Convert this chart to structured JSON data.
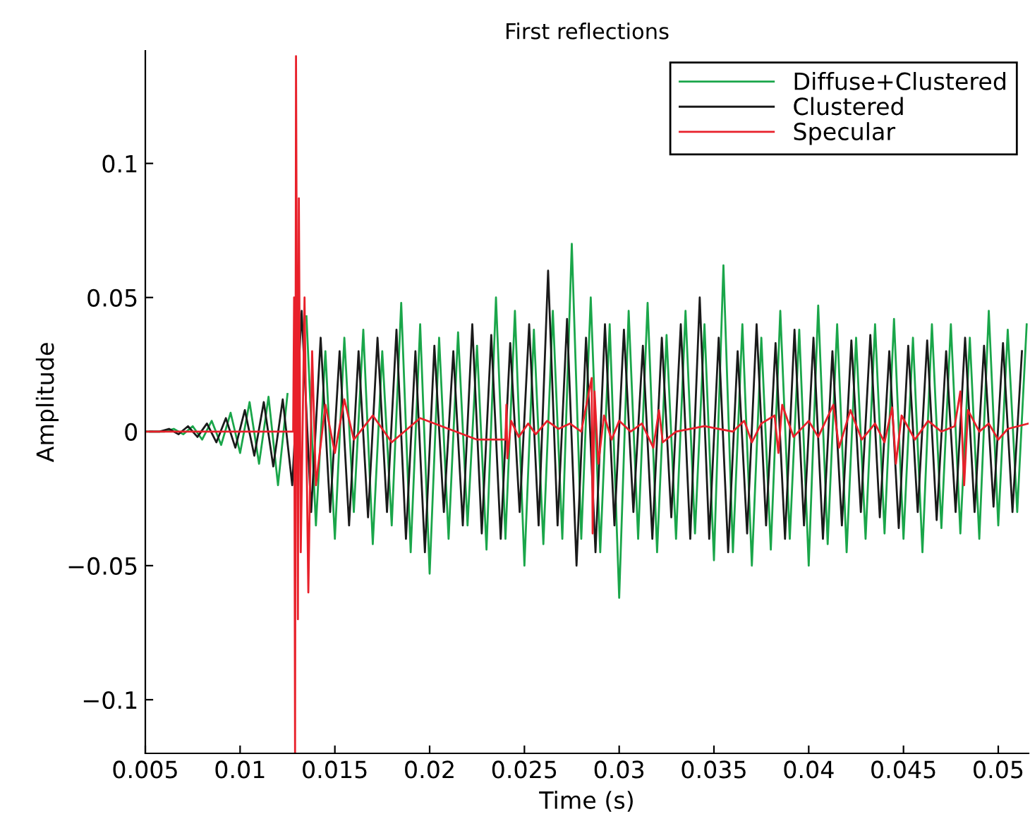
{
  "chart_data": {
    "type": "line",
    "title": "First reflections",
    "xlabel": "Time (s)",
    "ylabel": "Amplitude",
    "xlim": [
      0.005,
      0.0516
    ],
    "xticks": [
      0.005,
      0.01,
      0.015,
      0.02,
      0.025,
      0.03,
      0.035,
      0.04,
      0.045,
      0.05
    ],
    "ylim": [
      -0.12,
      0.142
    ],
    "yticks": [
      {
        "value": -0.1,
        "label": "−0.1"
      },
      {
        "value": -0.05,
        "label": "−0.05"
      },
      0,
      0.05,
      0.1
    ],
    "grid": false,
    "legend": "top right",
    "marker": "none",
    "line_style": "solid",
    "series": [
      {
        "name": "Diffuse+Clustered",
        "color": "#1aa64a",
        "x": [
          0.005,
          0.0055,
          0.006,
          0.0065,
          0.007,
          0.0075,
          0.008,
          0.0085,
          0.009,
          0.0095,
          0.01,
          0.0105,
          0.011,
          0.0115,
          0.012,
          0.0125,
          0.013,
          0.0135,
          0.014,
          0.0145,
          0.015,
          0.0155,
          0.016,
          0.0165,
          0.017,
          0.0175,
          0.018,
          0.0185,
          0.019,
          0.0195,
          0.02,
          0.0205,
          0.021,
          0.0215,
          0.022,
          0.0225,
          0.023,
          0.0235,
          0.024,
          0.0245,
          0.025,
          0.0255,
          0.026,
          0.0265,
          0.027,
          0.0275,
          0.028,
          0.0285,
          0.029,
          0.0295,
          0.03,
          0.0305,
          0.031,
          0.0315,
          0.032,
          0.0325,
          0.033,
          0.0335,
          0.034,
          0.0345,
          0.035,
          0.0355,
          0.036,
          0.0365,
          0.037,
          0.0375,
          0.038,
          0.0385,
          0.039,
          0.0395,
          0.04,
          0.0405,
          0.041,
          0.0415,
          0.042,
          0.0425,
          0.043,
          0.0435,
          0.044,
          0.0445,
          0.045,
          0.0455,
          0.046,
          0.0465,
          0.047,
          0.0475,
          0.048,
          0.0485,
          0.049,
          0.0495,
          0.05,
          0.0505,
          0.051,
          0.0515
        ],
        "values": [
          0,
          0,
          0,
          0.001,
          -0.001,
          0.002,
          -0.003,
          0.004,
          -0.005,
          0.007,
          -0.008,
          0.011,
          -0.012,
          0.013,
          -0.02,
          0.014,
          null,
          0.043,
          -0.035,
          0.03,
          -0.04,
          0.035,
          -0.03,
          0.038,
          -0.042,
          0.03,
          -0.035,
          0.048,
          -0.045,
          0.04,
          -0.053,
          0.035,
          -0.04,
          0.037,
          -0.035,
          0.032,
          -0.044,
          0.05,
          -0.04,
          0.045,
          -0.05,
          0.038,
          -0.042,
          0.045,
          -0.04,
          0.07,
          -0.04,
          0.05,
          -0.045,
          0.04,
          -0.062,
          0.045,
          -0.04,
          0.048,
          -0.045,
          0.036,
          -0.04,
          0.045,
          -0.038,
          0.04,
          -0.048,
          0.062,
          -0.045,
          0.04,
          -0.05,
          0.035,
          -0.044,
          0.045,
          -0.04,
          0.038,
          -0.05,
          0.047,
          -0.042,
          0.04,
          -0.045,
          0.035,
          -0.04,
          0.04,
          -0.038,
          0.042,
          -0.04,
          0.035,
          -0.045,
          0.04,
          -0.036,
          0.04,
          -0.038,
          0.035,
          -0.04,
          0.045,
          -0.035,
          0.038,
          -0.03,
          0.04
        ]
      },
      {
        "name": "Clustered",
        "color": "#1a1a1a",
        "x": [
          0.00525,
          0.00575,
          0.00625,
          0.00675,
          0.00725,
          0.00775,
          0.00825,
          0.00875,
          0.00925,
          0.00975,
          0.01025,
          0.01075,
          0.01125,
          0.01175,
          0.01225,
          0.01275,
          0.01325,
          0.01375,
          0.01425,
          0.01475,
          0.01525,
          0.01575,
          0.01625,
          0.01675,
          0.01725,
          0.01775,
          0.01825,
          0.01875,
          0.01925,
          0.01975,
          0.02025,
          0.02075,
          0.02125,
          0.02175,
          0.02225,
          0.02275,
          0.02325,
          0.02375,
          0.02425,
          0.02475,
          0.02525,
          0.02575,
          0.02625,
          0.02675,
          0.02725,
          0.02775,
          0.02825,
          0.02875,
          0.02925,
          0.02975,
          0.03025,
          0.03075,
          0.03125,
          0.03175,
          0.03225,
          0.03275,
          0.03325,
          0.03375,
          0.03425,
          0.03475,
          0.03525,
          0.03575,
          0.03625,
          0.03675,
          0.03725,
          0.03775,
          0.03825,
          0.03875,
          0.03925,
          0.03975,
          0.04025,
          0.04075,
          0.04125,
          0.04175,
          0.04225,
          0.04275,
          0.04325,
          0.04375,
          0.04425,
          0.04475,
          0.04525,
          0.04575,
          0.04625,
          0.04675,
          0.04725,
          0.04775,
          0.04825,
          0.04875,
          0.04925,
          0.04975,
          0.05025,
          0.05075,
          0.05125
        ],
        "values": [
          0,
          0,
          0.001,
          -0.001,
          0.002,
          -0.002,
          0.003,
          -0.004,
          0.005,
          -0.006,
          0.008,
          -0.009,
          0.011,
          -0.013,
          0.012,
          -0.02,
          0.045,
          -0.03,
          0.035,
          -0.03,
          0.03,
          -0.035,
          0.03,
          -0.032,
          0.035,
          -0.03,
          0.038,
          -0.04,
          0.03,
          -0.045,
          0.032,
          -0.03,
          0.03,
          -0.035,
          0.04,
          -0.038,
          0.036,
          -0.04,
          0.033,
          -0.03,
          0.04,
          -0.035,
          0.06,
          -0.035,
          0.042,
          -0.05,
          0.035,
          -0.045,
          0.04,
          -0.035,
          0.038,
          -0.03,
          0.032,
          -0.04,
          0.035,
          -0.032,
          0.04,
          -0.04,
          0.05,
          -0.04,
          0.035,
          -0.045,
          0.03,
          -0.038,
          0.04,
          -0.035,
          0.033,
          -0.04,
          0.038,
          -0.035,
          0.035,
          -0.04,
          0.03,
          -0.035,
          0.034,
          -0.03,
          0.036,
          -0.032,
          0.03,
          -0.036,
          0.032,
          -0.03,
          0.034,
          -0.033,
          0.03,
          -0.03,
          0.035,
          -0.03,
          0.032,
          -0.028,
          0.033,
          -0.03,
          0.03
        ]
      },
      {
        "name": "Specular",
        "color": "#e8202a",
        "x": [
          0.005,
          0.0128,
          0.01285,
          0.0129,
          0.01295,
          0.01305,
          0.0131,
          0.0132,
          0.0134,
          0.0136,
          0.0138,
          0.014,
          0.0145,
          0.015,
          0.0155,
          0.016,
          0.017,
          0.018,
          0.0195,
          0.021,
          0.0225,
          0.024,
          0.02405,
          0.0241,
          0.0243,
          0.0247,
          0.0252,
          0.0256,
          0.0262,
          0.0268,
          0.0274,
          0.028,
          0.02855,
          0.0286,
          0.0287,
          0.0289,
          0.0292,
          0.0296,
          0.03,
          0.0306,
          0.0312,
          0.0318,
          0.0321,
          0.0323,
          0.033,
          0.0345,
          0.036,
          0.0366,
          0.037,
          0.0375,
          0.0382,
          0.0384,
          0.0386,
          0.0392,
          0.04,
          0.0405,
          0.0413,
          0.0416,
          0.0422,
          0.0428,
          0.0435,
          0.044,
          0.0444,
          0.0446,
          0.0449,
          0.0456,
          0.0463,
          0.047,
          0.0477,
          0.048,
          0.0482,
          0.0484,
          0.049,
          0.0495,
          0.05,
          0.0505,
          0.0516
        ],
        "values": [
          0,
          0,
          0.05,
          -0.12,
          0.14,
          -0.07,
          0.087,
          -0.045,
          0.05,
          -0.06,
          0.03,
          -0.02,
          0.01,
          -0.008,
          0.012,
          -0.003,
          0.006,
          -0.004,
          0.005,
          0.001,
          -0.003,
          -0.003,
          0.01,
          -0.01,
          0.004,
          -0.002,
          0.003,
          -0.001,
          0.004,
          0.001,
          0.003,
          0,
          0.02,
          -0.038,
          0.015,
          -0.012,
          0.006,
          -0.003,
          0.004,
          0,
          0.003,
          -0.006,
          0.008,
          -0.004,
          0,
          0.002,
          0,
          0.004,
          -0.004,
          0.003,
          0.006,
          -0.008,
          0.01,
          -0.002,
          0.004,
          -0.002,
          0.01,
          -0.006,
          0.008,
          -0.003,
          0.003,
          -0.004,
          0.009,
          -0.012,
          0.006,
          -0.003,
          0.004,
          0,
          0.002,
          0.015,
          -0.02,
          0.008,
          0,
          0.003,
          -0.003,
          0.001,
          0.003
        ]
      }
    ]
  }
}
